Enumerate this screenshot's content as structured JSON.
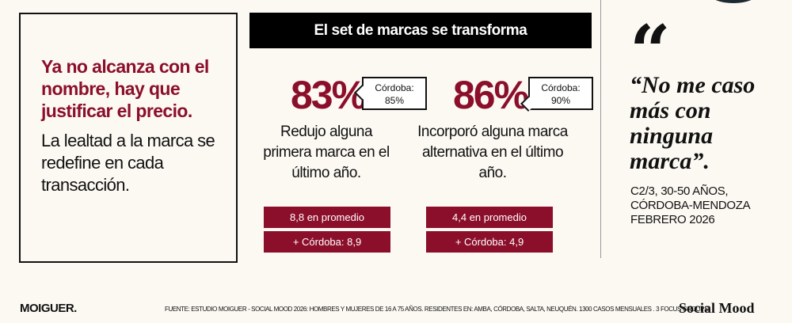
{
  "left": {
    "lead": "Ya no alcanza con el nombre, hay que justificar el precio.",
    "sub": "La lealtad a la marca se redefine en cada transacción."
  },
  "banner": "El set de marcas se transforma",
  "stats": [
    {
      "value": "83%",
      "callout_label": "Córdoba:",
      "callout_value": "85%",
      "desc": "Redujo alguna primera marca en el último año.",
      "avg": "8,8 en promedio",
      "avg_cordoba": "+ Córdoba: 8,9"
    },
    {
      "value": "86%",
      "callout_label": "Córdoba:",
      "callout_value": "90%",
      "desc": "Incorporó alguna marca alternativa en el último año.",
      "avg": "4,4 en promedio",
      "avg_cordoba": "+ Córdoba: 4,9"
    }
  ],
  "quote": {
    "mark": "“",
    "text": "“No me caso más con ninguna marca”.",
    "meta": [
      "C2/3, 30-50 AÑOS,",
      "CÓRDOBA-MENDOZA",
      "FEBRERO 2026"
    ]
  },
  "footer": {
    "logo": "MOIGUER.",
    "source": "FUENTE: ESTUDIO MOIGUER - SOCIAL MOOD 2026: HOMBRES Y MUJERES DE 16 A 75 AÑOS. RESIDENTES EN: AMBA, CÓRDOBA, SALTA, NEUQUÉN.  1300 CASOS MENSUALES . 3 FOCUS GROUPS",
    "brand": "Social Mood"
  },
  "colors": {
    "accent": "#8b0f2b",
    "background": "#fcf9f3"
  }
}
